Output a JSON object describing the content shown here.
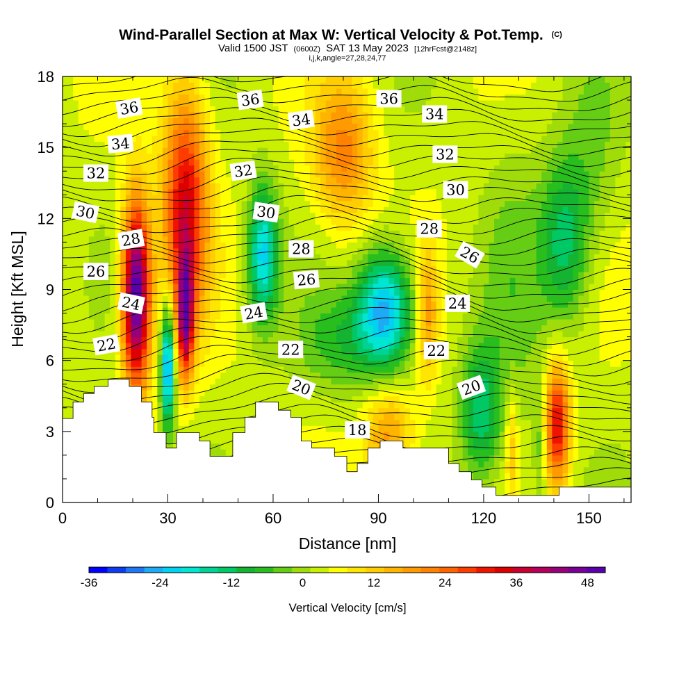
{
  "chart_data": {
    "type": "heatmap",
    "title": "Wind-Parallel Section at Max W: Vertical Velocity & Pot.Temp.",
    "title_mark": "(C)",
    "subtitle_parts": [
      "Valid 1500 JST",
      "(0600Z)",
      "SAT 13 May 2023",
      "[12hrFcst@2148z]"
    ],
    "subtitle2": "i,j,k,angle=27,28,24,77",
    "xlabel": "Distance [nm]",
    "ylabel": "Height [Kft MSL]",
    "xlim": [
      0,
      162
    ],
    "ylim": [
      0,
      18
    ],
    "xticks": [
      0,
      30,
      60,
      90,
      120,
      150
    ],
    "yticks": [
      0,
      3,
      6,
      9,
      12,
      15,
      18
    ],
    "colorbar": {
      "label": "Vertical Velocity [cm/s]",
      "levels": [
        -36,
        -33,
        -30,
        -27,
        -24,
        -21,
        -18,
        -15,
        -12,
        -9,
        -6,
        -3,
        0,
        3,
        6,
        9,
        12,
        15,
        18,
        21,
        24,
        27,
        30,
        33,
        36,
        39,
        42,
        45,
        48,
        51
      ],
      "tick_labels": [
        "-36",
        "-24",
        "-12",
        "0",
        "12",
        "24",
        "36",
        "48"
      ],
      "tick_values": [
        -36,
        -24,
        -12,
        0,
        12,
        24,
        36,
        48
      ],
      "colors": [
        "#0000ff",
        "#0f3cf0",
        "#1e78f5",
        "#1eaaf5",
        "#00d2f0",
        "#00e6d2",
        "#00d296",
        "#00c864",
        "#14b432",
        "#28be1e",
        "#64cd14",
        "#a0dc0a",
        "#c8f000",
        "#ffff00",
        "#ffe600",
        "#ffcd00",
        "#ffb400",
        "#ff9b00",
        "#ff8200",
        "#ff6400",
        "#ff3c00",
        "#f01400",
        "#dc0000",
        "#c80032",
        "#b4005a",
        "#960078",
        "#780096",
        "#5a00aa"
      ]
    },
    "contour_field": "Potential temperature (C)",
    "contour_labels": [
      {
        "text": "36",
        "x": 19,
        "y": 16.65,
        "angle": -10
      },
      {
        "text": "36",
        "x": 53.5,
        "y": 17.0,
        "angle": -8
      },
      {
        "text": "36",
        "x": 93,
        "y": 17.05,
        "angle": 0
      },
      {
        "text": "34",
        "x": 16.5,
        "y": 15.15,
        "angle": -5
      },
      {
        "text": "34",
        "x": 68,
        "y": 16.15,
        "angle": -8
      },
      {
        "text": "34",
        "x": 106,
        "y": 16.4,
        "angle": 0
      },
      {
        "text": "32",
        "x": 9.5,
        "y": 13.9,
        "angle": 0
      },
      {
        "text": "32",
        "x": 51.5,
        "y": 14.0,
        "angle": -8
      },
      {
        "text": "32",
        "x": 109,
        "y": 14.7,
        "angle": 0
      },
      {
        "text": "30",
        "x": 6.5,
        "y": 12.25,
        "angle": 12
      },
      {
        "text": "30",
        "x": 58,
        "y": 12.25,
        "angle": 8
      },
      {
        "text": "30",
        "x": 112,
        "y": 13.2,
        "angle": 0
      },
      {
        "text": "28",
        "x": 19.5,
        "y": 11.1,
        "angle": -10
      },
      {
        "text": "28",
        "x": 68,
        "y": 10.7,
        "angle": 0
      },
      {
        "text": "28",
        "x": 104.5,
        "y": 11.55,
        "angle": 0
      },
      {
        "text": "26",
        "x": 9.5,
        "y": 9.75,
        "angle": 0
      },
      {
        "text": "26",
        "x": 69.5,
        "y": 9.4,
        "angle": -5
      },
      {
        "text": "26",
        "x": 116,
        "y": 10.45,
        "angle": 30
      },
      {
        "text": "24",
        "x": 19.5,
        "y": 8.4,
        "angle": 12
      },
      {
        "text": "24",
        "x": 54.5,
        "y": 8.0,
        "angle": -10
      },
      {
        "text": "24",
        "x": 112.5,
        "y": 8.4,
        "angle": 0
      },
      {
        "text": "22",
        "x": 12.5,
        "y": 6.65,
        "angle": -10
      },
      {
        "text": "22",
        "x": 65,
        "y": 6.45,
        "angle": 0
      },
      {
        "text": "22",
        "x": 106.5,
        "y": 6.4,
        "angle": 0
      },
      {
        "text": "20",
        "x": 68,
        "y": 4.85,
        "angle": 22
      },
      {
        "text": "20",
        "x": 116.5,
        "y": 4.85,
        "angle": -20
      },
      {
        "text": "18",
        "x": 84,
        "y": 3.05,
        "angle": 0
      }
    ],
    "w_field_blobs": [
      {
        "x": 21,
        "y": 8.8,
        "sx": 2.8,
        "sy": 2.8,
        "w": 48
      },
      {
        "x": 35,
        "y": 12.5,
        "sx": 4.5,
        "sy": 3.5,
        "w": 30
      },
      {
        "x": 35,
        "y": 7.8,
        "sx": 1.6,
        "sy": 1.8,
        "w": 34
      },
      {
        "x": 80,
        "y": 14.8,
        "sx": 6,
        "sy": 2.2,
        "w": 17
      },
      {
        "x": 141,
        "y": 3.3,
        "sx": 2.5,
        "sy": 1.8,
        "w": 29
      },
      {
        "x": 93,
        "y": 2.8,
        "sx": 5,
        "sy": 1.5,
        "w": 15
      },
      {
        "x": 104,
        "y": 8,
        "sx": 2,
        "sy": 2,
        "w": 14
      },
      {
        "x": 30,
        "y": 5.8,
        "sx": 1.4,
        "sy": 1.8,
        "w": -32
      },
      {
        "x": 92,
        "y": 8.2,
        "sx": 5.5,
        "sy": 1.8,
        "w": -27
      },
      {
        "x": 57,
        "y": 10.5,
        "sx": 3,
        "sy": 2,
        "w": -24
      },
      {
        "x": 119,
        "y": 3.8,
        "sx": 4,
        "sy": 2,
        "w": -16
      },
      {
        "x": 143,
        "y": 11,
        "sx": 5,
        "sy": 2.5,
        "w": -15
      },
      {
        "x": 80,
        "y": 6.8,
        "sx": 9,
        "sy": 1.5,
        "w": -9
      },
      {
        "x": 128,
        "y": 8,
        "sx": 6,
        "sy": 6,
        "w": -5
      },
      {
        "x": 151,
        "y": 14.5,
        "sx": 6,
        "sy": 3,
        "w": -5
      },
      {
        "x": 128,
        "y": 2.5,
        "sx": 1.3,
        "sy": 1.8,
        "w": 10
      },
      {
        "x": 136,
        "y": 2.5,
        "sx": 1.3,
        "sy": 1.8,
        "w": -8
      }
    ],
    "terrain": [
      {
        "x": 0,
        "y": 3.55
      },
      {
        "x": 3,
        "y": 3.55
      },
      {
        "x": 3,
        "y": 4.25
      },
      {
        "x": 6,
        "y": 4.25
      },
      {
        "x": 6,
        "y": 4.6
      },
      {
        "x": 9,
        "y": 4.6
      },
      {
        "x": 9,
        "y": 4.9
      },
      {
        "x": 13,
        "y": 4.9
      },
      {
        "x": 13,
        "y": 5.2
      },
      {
        "x": 19,
        "y": 5.2
      },
      {
        "x": 19,
        "y": 4.9
      },
      {
        "x": 22.5,
        "y": 4.9
      },
      {
        "x": 22.5,
        "y": 4.25
      },
      {
        "x": 25.5,
        "y": 4.25
      },
      {
        "x": 25.5,
        "y": 3.6
      },
      {
        "x": 26,
        "y": 3.6
      },
      {
        "x": 26,
        "y": 2.95
      },
      {
        "x": 29.5,
        "y": 2.95
      },
      {
        "x": 29.5,
        "y": 2.3
      },
      {
        "x": 32.5,
        "y": 2.3
      },
      {
        "x": 32.5,
        "y": 2.95
      },
      {
        "x": 39,
        "y": 2.95
      },
      {
        "x": 39,
        "y": 2.6
      },
      {
        "x": 42,
        "y": 2.6
      },
      {
        "x": 42,
        "y": 1.95
      },
      {
        "x": 48.5,
        "y": 1.95
      },
      {
        "x": 48.5,
        "y": 2.95
      },
      {
        "x": 52,
        "y": 2.95
      },
      {
        "x": 52,
        "y": 3.6
      },
      {
        "x": 55,
        "y": 3.6
      },
      {
        "x": 55,
        "y": 4.25
      },
      {
        "x": 61.5,
        "y": 4.25
      },
      {
        "x": 61.5,
        "y": 3.9
      },
      {
        "x": 65,
        "y": 3.9
      },
      {
        "x": 65,
        "y": 3.6
      },
      {
        "x": 68,
        "y": 3.6
      },
      {
        "x": 68,
        "y": 2.6
      },
      {
        "x": 71,
        "y": 2.6
      },
      {
        "x": 71,
        "y": 2.3
      },
      {
        "x": 77.5,
        "y": 2.3
      },
      {
        "x": 77.5,
        "y": 1.95
      },
      {
        "x": 81,
        "y": 1.95
      },
      {
        "x": 81,
        "y": 1.3
      },
      {
        "x": 84,
        "y": 1.3
      },
      {
        "x": 84,
        "y": 1.65
      },
      {
        "x": 87,
        "y": 1.65
      },
      {
        "x": 87,
        "y": 2.3
      },
      {
        "x": 90.5,
        "y": 2.3
      },
      {
        "x": 90.5,
        "y": 2.6
      },
      {
        "x": 97,
        "y": 2.6
      },
      {
        "x": 97,
        "y": 2.3
      },
      {
        "x": 110,
        "y": 2.3
      },
      {
        "x": 110,
        "y": 1.65
      },
      {
        "x": 113,
        "y": 1.65
      },
      {
        "x": 113,
        "y": 1.3
      },
      {
        "x": 116.5,
        "y": 1.3
      },
      {
        "x": 116.5,
        "y": 0.95
      },
      {
        "x": 119.5,
        "y": 0.95
      },
      {
        "x": 119.5,
        "y": 0.65
      },
      {
        "x": 123.5,
        "y": 0.65
      },
      {
        "x": 123.5,
        "y": 0.3
      },
      {
        "x": 141.5,
        "y": 0.3
      },
      {
        "x": 141.5,
        "y": 0.65
      },
      {
        "x": 162,
        "y": 0.65
      }
    ]
  }
}
